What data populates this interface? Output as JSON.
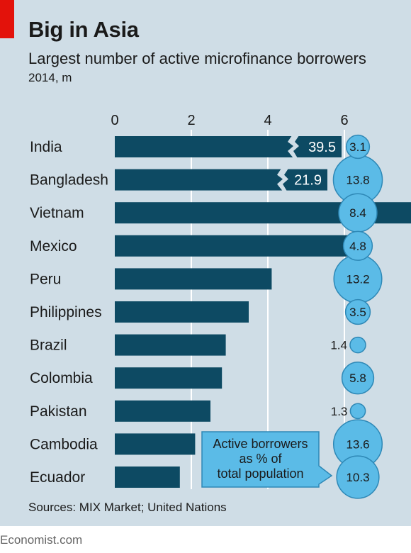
{
  "header": {
    "title": "Big in Asia",
    "subtitle": "Largest number of active microfinance borrowers",
    "unit_line": "2014, m"
  },
  "footer": {
    "source": "Sources: MIX Market; United Nations",
    "credit": "Economist.com"
  },
  "colors": {
    "bar": "#0d4a63",
    "bubble": "#5bbbe7",
    "bubble_stroke": "#2e88b6",
    "background": "#cfdde6",
    "brand_red": "#e3120b"
  },
  "chart_data": [
    {
      "type": "bar",
      "orientation": "horizontal",
      "categories": [
        "India",
        "Bangladesh",
        "Vietnam",
        "Mexico",
        "Peru",
        "Philippines",
        "Brazil",
        "Colombia",
        "Pakistan",
        "Cambodia",
        "Ecuador"
      ],
      "values": [
        39.5,
        21.9,
        7.8,
        6.1,
        4.1,
        3.5,
        2.9,
        2.8,
        2.5,
        2.1,
        1.7
      ],
      "value_labels": [
        "39.5",
        "21.9",
        "",
        "",
        "",
        "",
        "",
        "",
        "",
        "",
        ""
      ],
      "axis_break": true,
      "xlim": [
        0,
        8
      ],
      "xticks": [
        0,
        2,
        4,
        6,
        8
      ],
      "xaxis_position": "top",
      "grid": true
    },
    {
      "type": "bubble",
      "title": "Active borrowers as % of total population",
      "categories": [
        "India",
        "Bangladesh",
        "Vietnam",
        "Mexico",
        "Peru",
        "Philippines",
        "Brazil",
        "Colombia",
        "Pakistan",
        "Cambodia",
        "Ecuador"
      ],
      "values": [
        3.1,
        13.8,
        8.4,
        4.8,
        13.2,
        3.5,
        1.4,
        5.8,
        1.3,
        13.6,
        10.3
      ],
      "labels": [
        "3.1",
        "13.8",
        "8.4",
        "4.8",
        "13.2",
        "3.5",
        "1.4",
        "5.8",
        "1.3",
        "13.6",
        "10.3"
      ],
      "size_encodes": "area"
    }
  ]
}
